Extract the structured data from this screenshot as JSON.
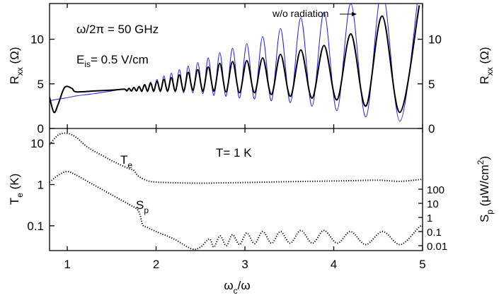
{
  "chart_data": [
    {
      "type": "line",
      "ylabel": [
        {
          "text": "R"
        },
        {
          "text": "xx",
          "shift": "sub"
        },
        {
          "text": "  (Ω)"
        }
      ],
      "annotations": [
        "ω/2π = 50 GHz",
        [
          {
            "text": "E"
          },
          {
            "text": "is",
            "shift": "sub"
          },
          {
            "text": "= 0.5 V/cm"
          }
        ]
      ],
      "xlim": [
        0.8,
        5
      ],
      "ylim": [
        0,
        14
      ],
      "yticks": [
        0,
        5,
        10
      ],
      "x": [
        0.8,
        0.85,
        0.9,
        0.97,
        1.05,
        1.1,
        1.3,
        1.5,
        1.643,
        1.669,
        1.695,
        1.722,
        1.75,
        1.779,
        1.808,
        1.839,
        1.871,
        1.904,
        1.938,
        1.973,
        2.01,
        2.048,
        2.088,
        2.129,
        2.172,
        2.216,
        2.262,
        2.311,
        2.361,
        2.414,
        2.469,
        2.527,
        2.587,
        2.651,
        2.717,
        2.787,
        2.861,
        2.939,
        3.021,
        3.108,
        3.2,
        3.298,
        3.401,
        3.512,
        3.63,
        3.756,
        3.891,
        4.036,
        4.193,
        4.362,
        4.545,
        4.745,
        4.963
      ],
      "series": [
        {
          "name": "w/o radiation",
          "color": "#1a1aff",
          "width": 1,
          "values": [
            3.1,
            3.2,
            3.3,
            3.4,
            3.55,
            3.65,
            3.9,
            4.2,
            4.4,
            4.2,
            4.5,
            4.2,
            4.6,
            4.2,
            4.7,
            4.1,
            4.9,
            4.1,
            5.2,
            4.1,
            5.5,
            4.1,
            5.9,
            4.1,
            6.2,
            4.1,
            6.6,
            4.0,
            7.0,
            4.0,
            7.4,
            3.9,
            7.9,
            3.7,
            8.5,
            3.6,
            9.0,
            3.4,
            9.5,
            3.3,
            10.3,
            3.1,
            11.2,
            2.9,
            12.4,
            2.5,
            13.0,
            2.0,
            14.0,
            1.3,
            15.5,
            0.8,
            16.0
          ]
        },
        {
          "color": "#000000",
          "width": 2,
          "values": [
            3.5,
            1.8,
            2.8,
            4.6,
            4.5,
            4.1,
            4.2,
            4.3,
            4.4,
            4.2,
            4.5,
            4.2,
            4.6,
            4.2,
            4.7,
            4.2,
            4.9,
            4.2,
            5.1,
            4.2,
            5.3,
            4.2,
            5.5,
            4.2,
            5.7,
            4.2,
            6.0,
            4.2,
            6.3,
            4.3,
            6.6,
            4.2,
            6.9,
            4.2,
            7.3,
            4.1,
            7.5,
            4.0,
            7.6,
            4.0,
            7.9,
            3.8,
            8.3,
            3.6,
            8.8,
            3.4,
            9.3,
            3.2,
            10.6,
            2.5,
            12.6,
            1.8,
            13.8
          ]
        }
      ]
    },
    {
      "type": "line",
      "ylog": true,
      "xlabel": [
        {
          "text": "ω"
        },
        {
          "text": "c",
          "shift": "sub"
        },
        {
          "text": "/ω"
        }
      ],
      "ylabel": [
        {
          "text": "T"
        },
        {
          "text": "e",
          "shift": "sub"
        },
        {
          "text": "  (K)"
        }
      ],
      "y2label": [
        {
          "text": "S"
        },
        {
          "text": "p",
          "shift": "sub"
        },
        {
          "text": "  (μW/cm"
        },
        {
          "text": "2",
          "shift": "super"
        },
        {
          "text": ")"
        }
      ],
      "annotations": [
        "T= 1 K",
        [
          {
            "text": "T"
          },
          {
            "text": "e",
            "shift": "sub"
          }
        ],
        [
          {
            "text": "S"
          },
          {
            "text": "p",
            "shift": "sub"
          }
        ]
      ],
      "xlim": [
        0.8,
        5
      ],
      "xticks": [
        1,
        2,
        3,
        4,
        5
      ],
      "ylim": [
        0.025,
        23
      ],
      "yticks": [
        0.1,
        1,
        10
      ],
      "y2lim": [
        0.0045,
        2000000
      ],
      "y2ticks": [
        0.01,
        0.1,
        1,
        10,
        100
      ],
      "series": [
        {
          "color": "#000000",
          "line_style": "dotted",
          "x": [
            0.8,
            0.9,
            1.0,
            1.1,
            1.2,
            1.3,
            1.4,
            1.5,
            1.6,
            1.7,
            1.75,
            1.8,
            1.9,
            2.0,
            2.25,
            2.5,
            2.75,
            3.0,
            3.25,
            3.5,
            3.75,
            4.0,
            4.25,
            4.5,
            4.75,
            5.0
          ],
          "values": [
            9.4,
            16,
            17.5,
            14,
            9,
            6.5,
            5,
            3.8,
            3.0,
            2.4,
            2.2,
            1.6,
            1.25,
            1.15,
            1.1,
            1.08,
            1.1,
            1.12,
            1.15,
            1.18,
            1.2,
            1.22,
            1.25,
            1.28,
            1.2,
            1.35
          ]
        },
        {
          "color": "#000000",
          "line_style": "dotted",
          "axis": "y2",
          "x": [
            0.8,
            0.9,
            1.0,
            1.1,
            1.3,
            1.5,
            1.7,
            1.8,
            1.85,
            1.9,
            2.0,
            2.2,
            2.4,
            2.5,
            2.6,
            2.65,
            2.72,
            2.79,
            2.86,
            2.94,
            3.02,
            3.11,
            3.2,
            3.3,
            3.4,
            3.51,
            3.63,
            3.76,
            3.89,
            4.04,
            4.19,
            4.36,
            4.55,
            4.75,
            4.96,
            5.0
          ],
          "values": [
            316,
            1000,
            1778,
            1000,
            200,
            40,
            8,
            3,
            0.3,
            0.2,
            0.1,
            0.03,
            0.006,
            0.008,
            0.03,
            0.008,
            0.05,
            0.01,
            0.06,
            0.012,
            0.08,
            0.014,
            0.1,
            0.015,
            0.1,
            0.015,
            0.12,
            0.015,
            0.12,
            0.015,
            0.1,
            0.012,
            0.1,
            0.012,
            0.2,
            0.25
          ]
        }
      ]
    }
  ]
}
